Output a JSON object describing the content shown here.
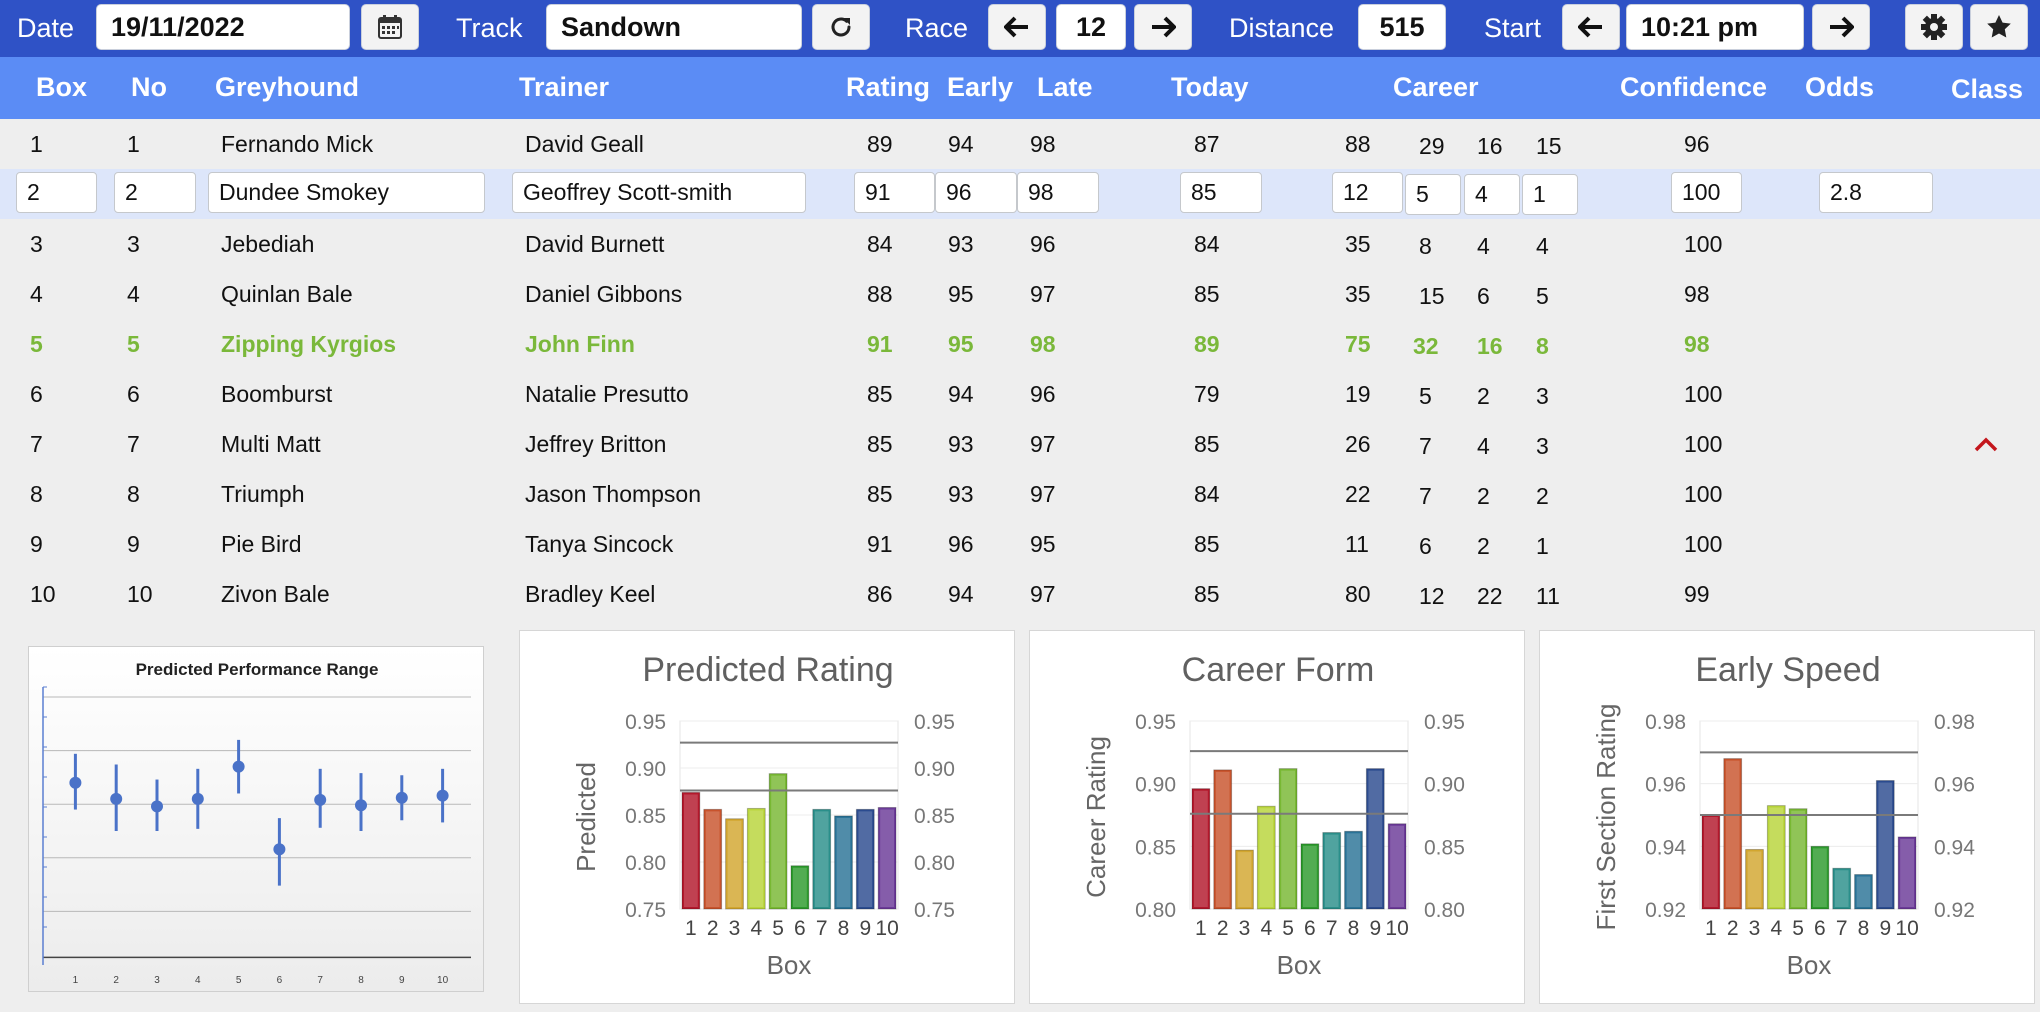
{
  "toolbar": {
    "date_label": "Date",
    "date_value": "19/11/2022",
    "calendar_icon": "calendar-icon",
    "track_label": "Track",
    "track_value": "Sandown",
    "refresh_icon": "refresh-icon",
    "race_label": "Race",
    "race_value": "12",
    "distance_label": "Distance",
    "distance_value": "515",
    "start_label": "Start",
    "start_value": "10:21 pm",
    "settings_icon": "gear-icon",
    "favorite_icon": "star-icon"
  },
  "columns": {
    "box": "Box",
    "no": "No",
    "greyhound": "Greyhound",
    "trainer": "Trainer",
    "rating": "Rating",
    "early": "Early",
    "late": "Late",
    "today": "Today",
    "career": "Career",
    "confidence": "Confidence",
    "odds": "Odds",
    "class": "Class"
  },
  "rows": [
    {
      "box": "1",
      "no": "1",
      "name": "Fernando Mick",
      "trainer": "David Geall",
      "rating": "89",
      "early": "94",
      "late": "98",
      "today": "87",
      "career": "88",
      "c1": "29",
      "c2": "16",
      "c3": "15",
      "confidence": "96",
      "odds": ""
    },
    {
      "box": "2",
      "no": "2",
      "name": "Dundee Smokey",
      "trainer": "Geoffrey Scott-smith",
      "rating": "91",
      "early": "96",
      "late": "98",
      "today": "85",
      "career": "12",
      "c1": "5",
      "c2": "4",
      "c3": "1",
      "confidence": "100",
      "odds": "2.8"
    },
    {
      "box": "3",
      "no": "3",
      "name": "Jebediah",
      "trainer": "David Burnett",
      "rating": "84",
      "early": "93",
      "late": "96",
      "today": "84",
      "career": "35",
      "c1": "8",
      "c2": "4",
      "c3": "4",
      "confidence": "100",
      "odds": ""
    },
    {
      "box": "4",
      "no": "4",
      "name": "Quinlan Bale",
      "trainer": "Daniel Gibbons",
      "rating": "88",
      "early": "95",
      "late": "97",
      "today": "85",
      "career": "35",
      "c1": "15",
      "c2": "6",
      "c3": "5",
      "confidence": "98",
      "odds": ""
    },
    {
      "box": "5",
      "no": "5",
      "name": "Zipping Kyrgios",
      "trainer": "John Finn",
      "rating": "91",
      "early": "95",
      "late": "98",
      "today": "89",
      "career": "75",
      "c1": "32",
      "c2": "16",
      "c3": "8",
      "confidence": "98",
      "odds": ""
    },
    {
      "box": "6",
      "no": "6",
      "name": "Boomburst",
      "trainer": "Natalie Presutto",
      "rating": "85",
      "early": "94",
      "late": "96",
      "today": "79",
      "career": "19",
      "c1": "5",
      "c2": "2",
      "c3": "3",
      "confidence": "100",
      "odds": ""
    },
    {
      "box": "7",
      "no": "7",
      "name": "Multi Matt",
      "trainer": "Jeffrey Britton",
      "rating": "85",
      "early": "93",
      "late": "97",
      "today": "85",
      "career": "26",
      "c1": "7",
      "c2": "4",
      "c3": "3",
      "confidence": "100",
      "odds": ""
    },
    {
      "box": "8",
      "no": "8",
      "name": "Triumph",
      "trainer": "Jason Thompson",
      "rating": "85",
      "early": "93",
      "late": "97",
      "today": "84",
      "career": "22",
      "c1": "7",
      "c2": "2",
      "c3": "2",
      "confidence": "100",
      "odds": ""
    },
    {
      "box": "9",
      "no": "9",
      "name": "Pie Bird",
      "trainer": "Tanya Sincock",
      "rating": "91",
      "early": "96",
      "late": "95",
      "today": "85",
      "career": "11",
      "c1": "6",
      "c2": "2",
      "c3": "1",
      "confidence": "100",
      "odds": ""
    },
    {
      "box": "10",
      "no": "10",
      "name": "Zivon Bale",
      "trainer": "Bradley Keel",
      "rating": "86",
      "early": "94",
      "late": "97",
      "today": "85",
      "career": "80",
      "c1": "12",
      "c2": "22",
      "c3": "11",
      "confidence": "99",
      "odds": ""
    }
  ],
  "selected_row": 1,
  "highlight_row": 4,
  "colors": {
    "toolbar": "#2f52c6",
    "header": "#5b8cf5",
    "highlight_text": "#7ab83a",
    "selected_row": "#dde6fa",
    "caret": "#c4161c"
  },
  "chart_data": [
    {
      "type": "scatter",
      "title": "Predicted Performance Range",
      "x": [
        1,
        2,
        3,
        4,
        5,
        6,
        7,
        8,
        9,
        10
      ],
      "y": [
        0.87,
        0.855,
        0.848,
        0.855,
        0.885,
        0.808,
        0.854,
        0.849,
        0.856,
        0.858
      ],
      "low": [
        0.845,
        0.825,
        0.825,
        0.827,
        0.86,
        0.774,
        0.828,
        0.825,
        0.835,
        0.833
      ],
      "high": [
        0.897,
        0.887,
        0.873,
        0.883,
        0.91,
        0.837,
        0.883,
        0.879,
        0.877,
        0.883
      ],
      "ylim": [
        0.7,
        0.95
      ]
    },
    {
      "type": "bar",
      "title": "Predicted Rating",
      "categories": [
        "1",
        "2",
        "3",
        "4",
        "5",
        "6",
        "7",
        "8",
        "9",
        "10"
      ],
      "values": [
        0.874,
        0.856,
        0.846,
        0.857,
        0.894,
        0.796,
        0.856,
        0.849,
        0.856,
        0.858
      ],
      "xlabel": "Box",
      "ylabel": "Predicted",
      "ylim": [
        0.75,
        0.95
      ],
      "ticks": [
        "0.95",
        "0.90",
        "0.85",
        "0.80",
        "0.75"
      ],
      "reflines": [
        0.927,
        0.876
      ]
    },
    {
      "type": "bar",
      "title": "Career Form",
      "categories": [
        "1",
        "2",
        "3",
        "4",
        "5",
        "6",
        "7",
        "8",
        "9",
        "10"
      ],
      "values": [
        0.896,
        0.911,
        0.847,
        0.882,
        0.912,
        0.852,
        0.861,
        0.862,
        0.912,
        0.868
      ],
      "xlabel": "Box",
      "ylabel": "Career Rating",
      "ylim": [
        0.8,
        0.95
      ],
      "ticks": [
        "0.95",
        "0.90",
        "0.85",
        "0.80"
      ],
      "reflines": [
        0.926,
        0.876
      ]
    },
    {
      "type": "bar",
      "title": "Early Speed",
      "categories": [
        "1",
        "2",
        "3",
        "4",
        "5",
        "6",
        "7",
        "8",
        "9",
        "10"
      ],
      "values": [
        0.95,
        0.968,
        0.939,
        0.953,
        0.952,
        0.94,
        0.933,
        0.931,
        0.961,
        0.943
      ],
      "xlabel": "Box",
      "ylabel": "First Section Rating",
      "ylim": [
        0.92,
        0.98
      ],
      "ticks": [
        "0.98",
        "0.96",
        "0.94",
        "0.92"
      ],
      "reflines": [
        0.97,
        0.95
      ]
    }
  ]
}
